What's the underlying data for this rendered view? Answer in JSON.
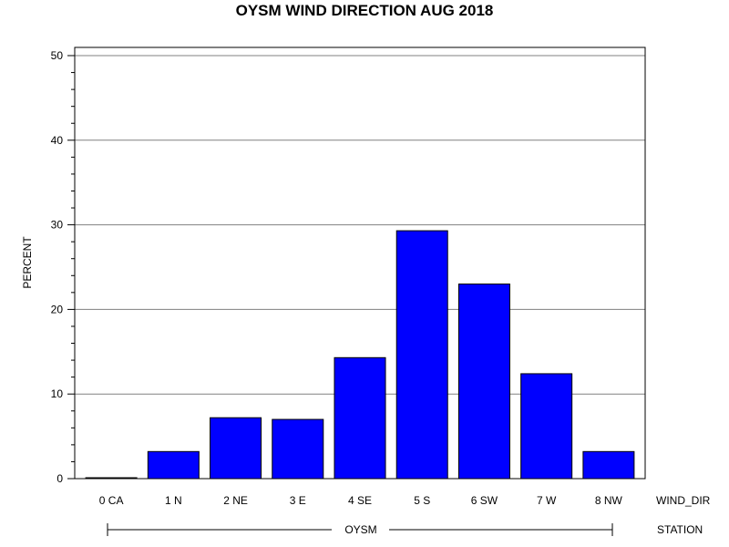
{
  "chart_data": {
    "type": "bar",
    "title": "OYSM WIND DIRECTION AUG 2018",
    "ylabel": "PERCENT",
    "xlabel": "WIND_DIR",
    "group_label": "STATION",
    "group_value": "OYSM",
    "categories": [
      "0 CA",
      "1 N",
      "2 NE",
      "3 E",
      "4 SE",
      "5 S",
      "6 SW",
      "7 W",
      "8 NW"
    ],
    "values": [
      0.1,
      3.2,
      7.2,
      7.0,
      14.3,
      29.3,
      23.0,
      12.4,
      3.2
    ],
    "ylim": [
      0,
      50
    ],
    "yticks": [
      0,
      10,
      20,
      30,
      40,
      50
    ],
    "grid": true,
    "legend": "none",
    "bar_color": "#0000ff",
    "bar_stroke": "#000000",
    "grid_color": "#808080"
  }
}
